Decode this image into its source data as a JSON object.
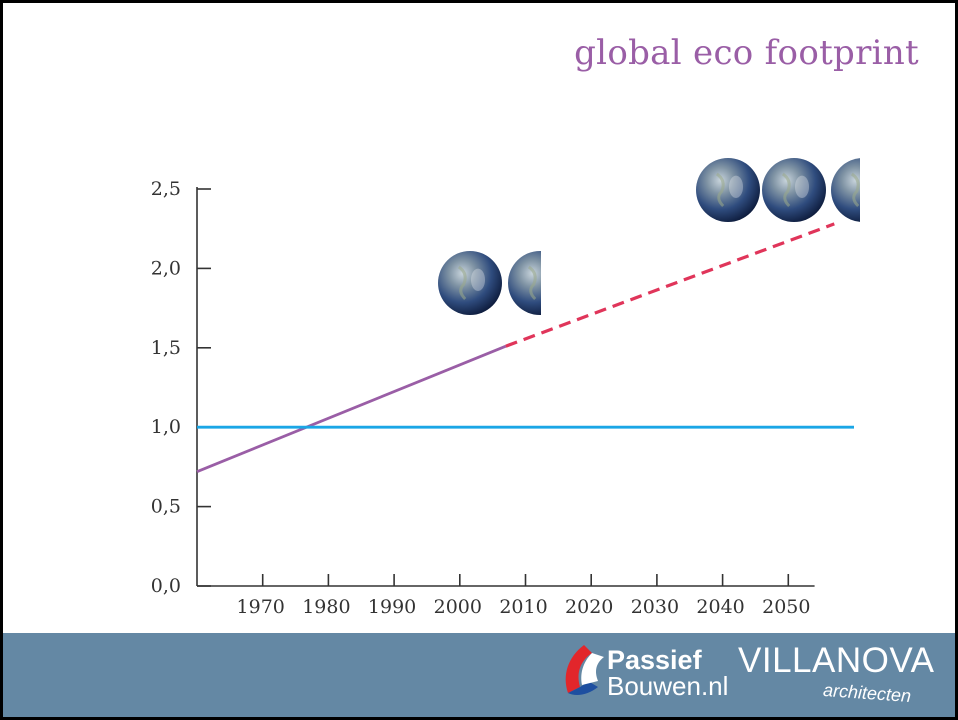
{
  "title": "global eco footprint",
  "chart_data": {
    "type": "line",
    "title": "global eco footprint",
    "xlabel": "",
    "ylabel": "",
    "xlim": [
      1960,
      2060
    ],
    "ylim": [
      0,
      2.5
    ],
    "x_ticks": [
      1970,
      1980,
      1990,
      2000,
      2010,
      2020,
      2030,
      2040,
      2050
    ],
    "y_ticks": [
      0.0,
      0.5,
      1.0,
      1.5,
      2.0,
      2.5
    ],
    "y_tick_labels": [
      "0,0",
      "0,5",
      "1,0",
      "1,5",
      "2,0",
      "2,5"
    ],
    "grid": false,
    "series": [
      {
        "style": "solid",
        "color": "#9a5ea6",
        "x": [
          1960,
          2007
        ],
        "y": [
          0.72,
          1.51
        ]
      },
      {
        "style": "dashed",
        "color": "#e0355a",
        "x": [
          2007,
          2057
        ],
        "y": [
          1.51,
          2.28
        ]
      },
      {
        "style": "solid",
        "color": "#1aa6e6",
        "x": [
          1960,
          2060
        ],
        "y": [
          1.0,
          1.0
        ]
      }
    ],
    "annotations": [
      {
        "type": "earth-icons",
        "count": 1.5,
        "near_x": 2005,
        "near_y": 1.93
      },
      {
        "type": "earth-icons",
        "count": 2.5,
        "near_x": 2040,
        "near_y": 2.5
      }
    ]
  },
  "footer": {
    "background": "#6488a4",
    "passief_line1": "Passief",
    "passief_line2": "Bouwen.nl",
    "villanova_name": "VILLANOVA",
    "villanova_sub": "architecten"
  }
}
